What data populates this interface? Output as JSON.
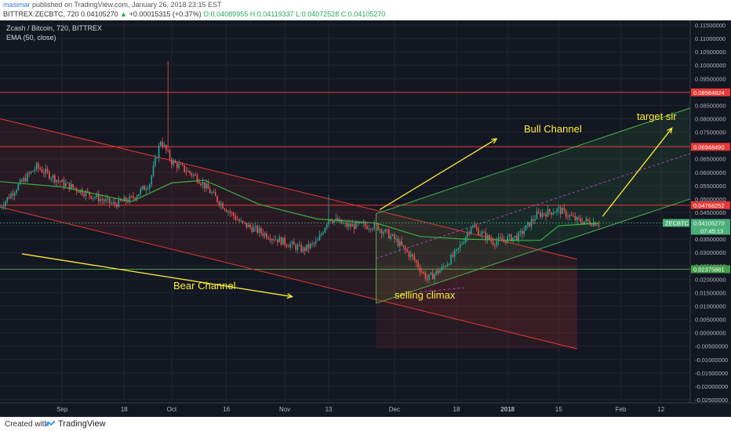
{
  "header": {
    "username": "masimar",
    "published": "published on TradingView.com, January 26, 2018 23:15 EST",
    "symbol_line": "BITTREX:ZECBTC, 720",
    "last": "0.04105270",
    "change": "+0.00015315 (+0.37%)",
    "ohlc_o": "O:0.04089955",
    "ohlc_h": "H:0.04119337",
    "ohlc_l": "L:0.04072528",
    "ohlc_c": "C:0.04105270"
  },
  "legend": {
    "title": "Zcash / Bitcoin, 720, BITTREX",
    "indicator": "EMA (50, close)"
  },
  "annotations": {
    "bull": "Bull Channel",
    "bear": "Bear Channel",
    "target": "target sir",
    "climax": "selling climax"
  },
  "footer": {
    "created": "Created with",
    "brand": "TradingView"
  },
  "colors": {
    "background": "#131722",
    "grid": "#1f2533",
    "up": "#26a69a",
    "down": "#ef5350",
    "ema": "#3cb043",
    "annotation": "#ffeb3b",
    "bear_channel": "#e53935",
    "bull_channel": "#4caf50",
    "price_label": "#4caf78"
  },
  "chart_data": {
    "type": "candlestick",
    "y_axis": {
      "min": -0.025,
      "max": 0.115,
      "step": 0.005,
      "position": "right"
    },
    "x_axis_labels": [
      {
        "label": "Sep",
        "date": "2017-09-01"
      },
      {
        "label": "18",
        "date": "2017-09-18"
      },
      {
        "label": "Oct",
        "date": "2017-10-01"
      },
      {
        "label": "16",
        "date": "2017-10-16"
      },
      {
        "label": "Nov",
        "date": "2017-11-01"
      },
      {
        "label": "13",
        "date": "2017-11-13"
      },
      {
        "label": "Dec",
        "date": "2017-12-01"
      },
      {
        "label": "18",
        "date": "2017-12-18"
      },
      {
        "label": "2018",
        "date": "2018-01-01"
      },
      {
        "label": "15",
        "date": "2018-01-15"
      },
      {
        "label": "Feb",
        "date": "2018-02-01"
      },
      {
        "label": "12",
        "date": "2018-02-12"
      }
    ],
    "date_range": [
      "2017-08-15",
      "2018-02-20"
    ],
    "last_date": "2018-01-26",
    "price_anchors": [
      [
        "2017-08-15",
        0.047
      ],
      [
        "2017-08-20",
        0.055
      ],
      [
        "2017-08-25",
        0.062
      ],
      [
        "2017-09-01",
        0.056
      ],
      [
        "2017-09-08",
        0.052
      ],
      [
        "2017-09-15",
        0.048
      ],
      [
        "2017-09-20",
        0.05
      ],
      [
        "2017-09-25",
        0.056
      ],
      [
        "2017-09-28",
        0.072
      ],
      [
        "2017-10-01",
        0.064
      ],
      [
        "2017-10-08",
        0.058
      ],
      [
        "2017-10-14",
        0.049
      ],
      [
        "2017-10-20",
        0.041
      ],
      [
        "2017-10-28",
        0.036
      ],
      [
        "2017-11-06",
        0.031
      ],
      [
        "2017-11-10",
        0.034
      ],
      [
        "2017-11-13",
        0.043
      ],
      [
        "2017-11-18",
        0.04
      ],
      [
        "2017-11-26",
        0.04
      ],
      [
        "2017-12-01",
        0.035
      ],
      [
        "2017-12-06",
        0.028
      ],
      [
        "2017-12-10",
        0.02
      ],
      [
        "2017-12-14",
        0.024
      ],
      [
        "2017-12-18",
        0.03
      ],
      [
        "2017-12-22",
        0.04
      ],
      [
        "2017-12-28",
        0.034
      ],
      [
        "2018-01-04",
        0.036
      ],
      [
        "2018-01-09",
        0.044
      ],
      [
        "2018-01-15",
        0.046
      ],
      [
        "2018-01-20",
        0.042
      ],
      [
        "2018-01-26",
        0.04105
      ]
    ],
    "wick_spikes": [
      {
        "date": "2017-09-30",
        "high": 0.1015
      },
      {
        "date": "2017-11-13",
        "high": 0.0515
      }
    ],
    "ema_anchors": [
      [
        "2017-08-15",
        0.0565
      ],
      [
        "2017-09-01",
        0.0545
      ],
      [
        "2017-09-20",
        0.049
      ],
      [
        "2017-10-01",
        0.056
      ],
      [
        "2017-10-10",
        0.057
      ],
      [
        "2017-10-25",
        0.048
      ],
      [
        "2017-11-10",
        0.0425
      ],
      [
        "2017-11-26",
        0.041
      ],
      [
        "2017-12-08",
        0.036
      ],
      [
        "2017-12-20",
        0.035
      ],
      [
        "2018-01-04",
        0.0345
      ],
      [
        "2018-01-10",
        0.0345
      ],
      [
        "2018-01-15",
        0.04
      ],
      [
        "2018-01-26",
        0.041
      ]
    ],
    "horizontal_lines": [
      {
        "value": 0.08984824,
        "color": "#e53935",
        "label": "0.08984824"
      },
      {
        "value": 0.0694849,
        "color": "#e53935",
        "label": "0.06948490"
      },
      {
        "value": 0.04768252,
        "color": "#e53935",
        "label": "0.04768252"
      },
      {
        "value": 0.02375881,
        "color": "#43a047",
        "label": "0.02375881"
      }
    ],
    "last_price": {
      "value": 0.0410527,
      "symbol": "ZECBTC",
      "countdown": "07:45:13"
    },
    "bear_channel": {
      "top": [
        [
          "2017-08-15",
          0.08
        ],
        [
          "2018-01-20",
          0.0275
        ]
      ],
      "bottom": [
        [
          "2017-08-15",
          0.047
        ],
        [
          "2018-01-20",
          -0.006
        ]
      ],
      "shade_start": "2017-11-26"
    },
    "bull_channel": {
      "lower": [
        [
          "2017-11-26",
          0.011
        ],
        [
          "2018-02-20",
          0.05
        ]
      ],
      "upper": [
        [
          "2017-11-26",
          0.0445
        ],
        [
          "2018-02-20",
          0.084
        ]
      ],
      "mid": [
        [
          "2017-11-26",
          0.0278
        ],
        [
          "2018-02-20",
          0.067
        ]
      ]
    },
    "arrows": [
      {
        "name": "bull",
        "from": [
          "2017-11-27",
          0.046
        ],
        "to": [
          "2017-12-29",
          0.0725
        ]
      },
      {
        "name": "bear",
        "from": [
          "2017-08-21",
          0.0295
        ],
        "to": [
          "2017-11-03",
          0.0135
        ]
      },
      {
        "name": "target",
        "from": [
          "2018-01-27",
          0.0435
        ],
        "to": [
          "2018-02-15",
          0.0765
        ]
      }
    ],
    "climax_marker": {
      "from": [
        "2017-12-08",
        0.0153
      ],
      "to": [
        "2017-12-20",
        0.0168
      ]
    },
    "legend_placement": "top-left"
  }
}
